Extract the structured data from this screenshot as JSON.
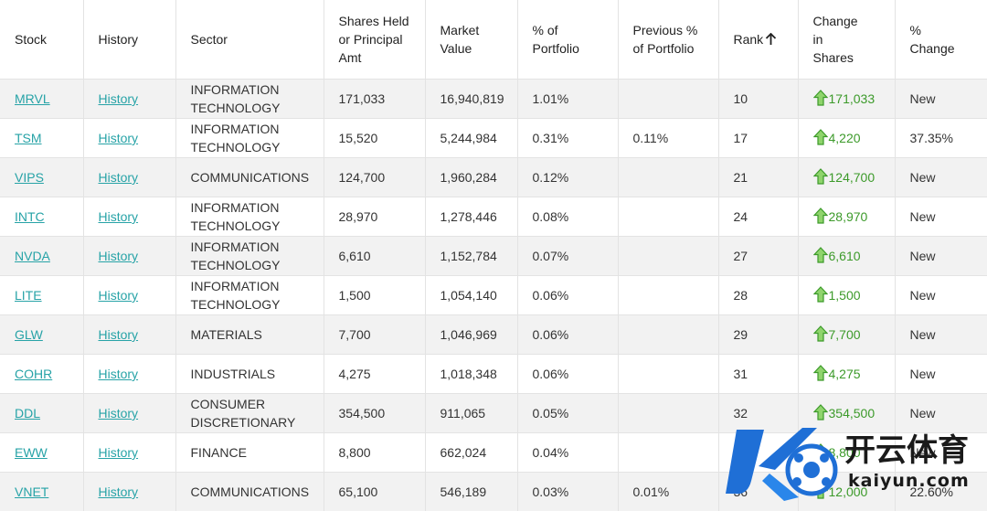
{
  "columns": {
    "stock": "Stock",
    "history": "History",
    "sector": "Sector",
    "shares": "Shares Held or Principal Amt",
    "market_value": "Market Value",
    "pct_portfolio": "% of Portfolio",
    "prev_pct_portfolio": "Previous % of Portfolio",
    "rank": "Rank",
    "change_shares": "Change in Shares",
    "pct_change": "% Change"
  },
  "rows": [
    {
      "stock": "MRVL",
      "history": "History",
      "sector": "INFORMATION TECHNOLOGY",
      "shares": "171,033",
      "market_value": "16,940,819",
      "pct": "1.01%",
      "prev_pct": "",
      "rank": "10",
      "change": "171,033",
      "pct_change": "New"
    },
    {
      "stock": "TSM",
      "history": "History",
      "sector": "INFORMATION TECHNOLOGY",
      "shares": "15,520",
      "market_value": "5,244,984",
      "pct": "0.31%",
      "prev_pct": "0.11%",
      "rank": "17",
      "change": "4,220",
      "pct_change": "37.35%"
    },
    {
      "stock": "VIPS",
      "history": "History",
      "sector": "COMMUNICATIONS",
      "shares": "124,700",
      "market_value": "1,960,284",
      "pct": "0.12%",
      "prev_pct": "",
      "rank": "21",
      "change": "124,700",
      "pct_change": "New"
    },
    {
      "stock": "INTC",
      "history": "History",
      "sector": "INFORMATION TECHNOLOGY",
      "shares": "28,970",
      "market_value": "1,278,446",
      "pct": "0.08%",
      "prev_pct": "",
      "rank": "24",
      "change": "28,970",
      "pct_change": "New"
    },
    {
      "stock": "NVDA",
      "history": "History",
      "sector": "INFORMATION TECHNOLOGY",
      "shares": "6,610",
      "market_value": "1,152,784",
      "pct": "0.07%",
      "prev_pct": "",
      "rank": "27",
      "change": "6,610",
      "pct_change": "New"
    },
    {
      "stock": "LITE",
      "history": "History",
      "sector": "INFORMATION TECHNOLOGY",
      "shares": "1,500",
      "market_value": "1,054,140",
      "pct": "0.06%",
      "prev_pct": "",
      "rank": "28",
      "change": "1,500",
      "pct_change": "New"
    },
    {
      "stock": "GLW",
      "history": "History",
      "sector": "MATERIALS",
      "shares": "7,700",
      "market_value": "1,046,969",
      "pct": "0.06%",
      "prev_pct": "",
      "rank": "29",
      "change": "7,700",
      "pct_change": "New"
    },
    {
      "stock": "COHR",
      "history": "History",
      "sector": "INDUSTRIALS",
      "shares": "4,275",
      "market_value": "1,018,348",
      "pct": "0.06%",
      "prev_pct": "",
      "rank": "31",
      "change": "4,275",
      "pct_change": "New"
    },
    {
      "stock": "DDL",
      "history": "History",
      "sector": "CONSUMER DISCRETIONARY",
      "shares": "354,500",
      "market_value": "911,065",
      "pct": "0.05%",
      "prev_pct": "",
      "rank": "32",
      "change": "354,500",
      "pct_change": "New"
    },
    {
      "stock": "EWW",
      "history": "History",
      "sector": "FINANCE",
      "shares": "8,800",
      "market_value": "662,024",
      "pct": "0.04%",
      "prev_pct": "",
      "rank": "34",
      "change": "8,800",
      "pct_change": "New"
    },
    {
      "stock": "VNET",
      "history": "History",
      "sector": "COMMUNICATIONS",
      "shares": "65,100",
      "market_value": "546,189",
      "pct": "0.03%",
      "prev_pct": "0.01%",
      "rank": "36",
      "change": "12,000",
      "pct_change": "22.60%"
    }
  ],
  "icons": {
    "sort": "arrow-up-icon",
    "change": "green-up-arrow-icon"
  },
  "colors": {
    "link": "#27a3a7",
    "positive": "#3c9a2a",
    "stripe": "#f2f2f2"
  },
  "watermark": {
    "brand": "开云体育",
    "url": "kaiyun.com"
  }
}
